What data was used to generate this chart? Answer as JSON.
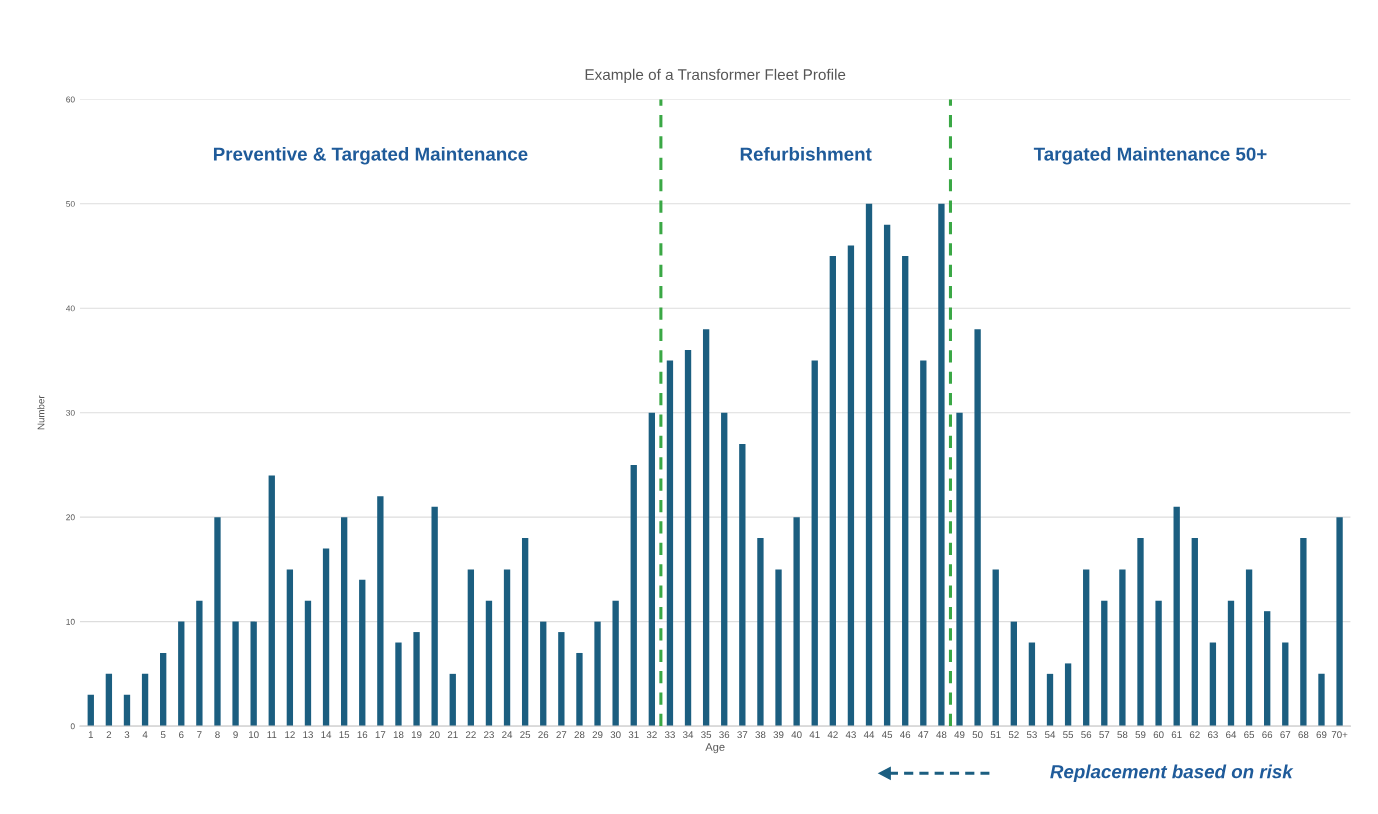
{
  "chart_data": {
    "type": "bar",
    "title": "Example of a Transformer Fleet Profile",
    "xlabel": "Age",
    "ylabel": "Number",
    "categories": [
      "1",
      "2",
      "3",
      "4",
      "5",
      "6",
      "7",
      "8",
      "9",
      "10",
      "11",
      "12",
      "13",
      "14",
      "15",
      "16",
      "17",
      "18",
      "19",
      "20",
      "21",
      "22",
      "23",
      "24",
      "25",
      "26",
      "27",
      "28",
      "29",
      "30",
      "31",
      "32",
      "33",
      "34",
      "35",
      "36",
      "37",
      "38",
      "39",
      "40",
      "41",
      "42",
      "43",
      "44",
      "45",
      "46",
      "47",
      "48",
      "49",
      "50",
      "51",
      "52",
      "53",
      "54",
      "55",
      "56",
      "57",
      "58",
      "59",
      "60",
      "61",
      "62",
      "63",
      "64",
      "65",
      "66",
      "67",
      "68",
      "69",
      "70+"
    ],
    "values": [
      3,
      5,
      3,
      5,
      7,
      10,
      12,
      20,
      10,
      10,
      24,
      15,
      12,
      17,
      20,
      14,
      22,
      8,
      9,
      21,
      5,
      15,
      12,
      15,
      18,
      10,
      9,
      7,
      10,
      12,
      25,
      30,
      35,
      36,
      38,
      30,
      27,
      18,
      15,
      20,
      35,
      45,
      46,
      50,
      48,
      45,
      35,
      50,
      30,
      38,
      15,
      10,
      8,
      5,
      6,
      15,
      12,
      15,
      18,
      12,
      21,
      18,
      8,
      12,
      15,
      11,
      8,
      18,
      5,
      20
    ],
    "color": "#1b5e80",
    "ylim": [
      0,
      60
    ],
    "yticks": [
      0,
      10,
      20,
      30,
      40,
      50,
      60
    ],
    "grid": "y",
    "annotations": [
      "Preventive & Targated Maintenance",
      "Refurbishment",
      "Targated Maintenance 50+",
      "Replacement based on risk"
    ]
  }
}
